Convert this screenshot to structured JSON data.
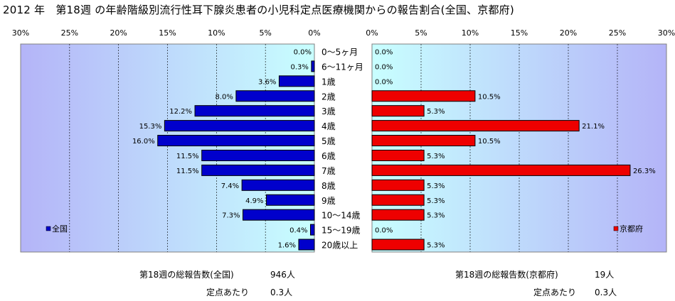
{
  "title": "2012 年　第18週 の年齢階級別流行性耳下腺炎患者の小児科定点医療機関からの報告割合(全国、京都府)",
  "footer": {
    "national_total_label": "第18週の総報告数(全国)",
    "national_total_value": "946人",
    "national_per_label": "定点あたり",
    "national_per_value": "0.3人",
    "kyoto_total_label": "第18週の総報告数(京都府)",
    "kyoto_total_value": "19人",
    "kyoto_per_label": "定点あたり",
    "kyoto_per_value": "0.3人"
  },
  "chart_data": [
    {
      "type": "bar",
      "orientation": "horizontal",
      "direction": "right-to-left",
      "series": [
        {
          "name": "全国",
          "color": "#0000cc",
          "values": [
            0.0,
            0.3,
            3.6,
            8.0,
            12.2,
            15.3,
            16.0,
            11.5,
            11.5,
            7.4,
            4.9,
            7.3,
            0.4,
            1.6
          ]
        }
      ],
      "value_labels": [
        "0.0%",
        "0.3%",
        "3.6%",
        "8.0%",
        "12.2%",
        "15.3%",
        "16.0%",
        "11.5%",
        "11.5%",
        "7.4%",
        "4.9%",
        "7.3%",
        "0.4%",
        "1.6%"
      ],
      "xlim": [
        0,
        30
      ],
      "x_ticks": [
        "30%",
        "25%",
        "20%",
        "15%",
        "10%",
        "5%",
        "0%"
      ],
      "legend": "bottom-left",
      "plot_bg_gradient": [
        "#b4b4f8",
        "#c8ffff"
      ]
    },
    {
      "type": "bar",
      "orientation": "horizontal",
      "direction": "left-to-right",
      "series": [
        {
          "name": "京都府",
          "color": "#ee0000",
          "values": [
            0.0,
            0.0,
            0.0,
            10.5,
            5.3,
            21.1,
            10.5,
            5.3,
            26.3,
            5.3,
            5.3,
            5.3,
            0.0,
            5.3
          ]
        }
      ],
      "value_labels": [
        "0.0%",
        "0.0%",
        "0.0%",
        "10.5%",
        "5.3%",
        "21.1%",
        "10.5%",
        "5.3%",
        "26.3%",
        "5.3%",
        "5.3%",
        "5.3%",
        "0.0%",
        "5.3%"
      ],
      "xlim": [
        0,
        30
      ],
      "x_ticks": [
        "0%",
        "5%",
        "10%",
        "15%",
        "20%",
        "25%",
        "30%"
      ],
      "legend": "bottom-right",
      "plot_bg_gradient": [
        "#c8ffff",
        "#b4b4f8"
      ]
    }
  ],
  "categories": [
    "0～5ヶ月",
    "6～11ヶ月",
    "1歳",
    "2歳",
    "3歳",
    "4歳",
    "5歳",
    "6歳",
    "7歳",
    "8歳",
    "9歳",
    "10～14歳",
    "15～19歳",
    "20歳以上"
  ]
}
